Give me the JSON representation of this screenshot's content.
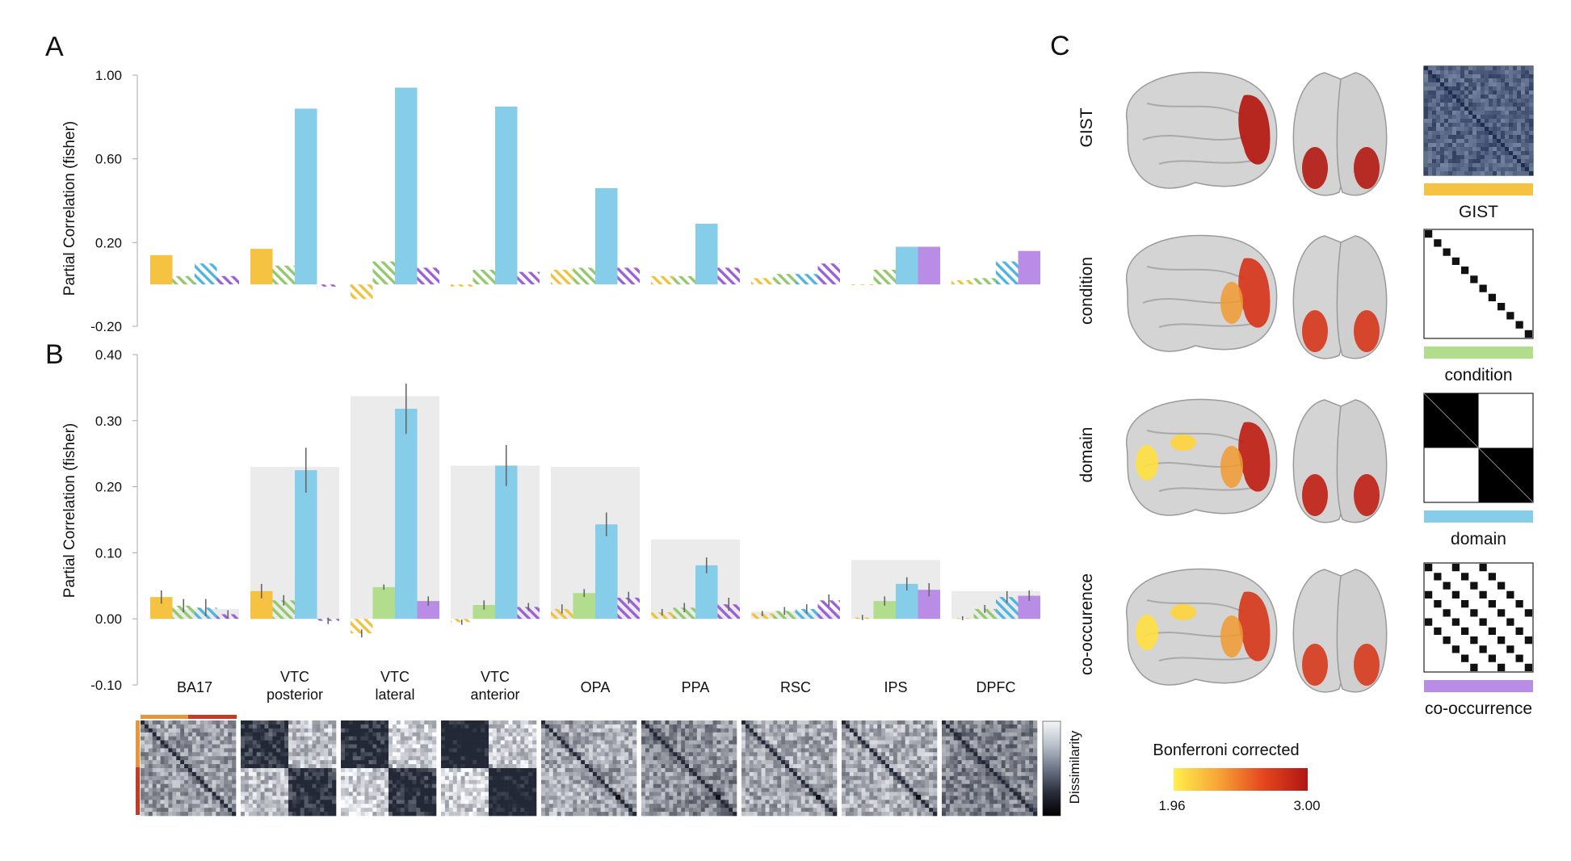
{
  "panel_labels": {
    "a": "A",
    "b": "B",
    "c": "C"
  },
  "colors": {
    "gist": "#f5c242",
    "condition": "#b2dd8d",
    "domain": "#86cdea",
    "cooccurrence": "#b98de6",
    "gist_hatch": "#edc33f",
    "condition_hatch": "#92c96b",
    "domain_hatch": "#4eb4e0",
    "cooccurrence_hatch": "#9b5fd8",
    "ceiling": "#ebebec",
    "errorbar": "#666666"
  },
  "chart_data": [
    {
      "type": "bar",
      "panel": "A",
      "ylabel": "Partial Correlation (fisher)",
      "ylim": [
        -0.2,
        1.0
      ],
      "yticks": [
        "1.00",
        "0.60",
        "0.20",
        "-0.20"
      ],
      "ytick_values": [
        1.0,
        0.6,
        0.2,
        -0.2
      ],
      "categories": [
        "BA17",
        "VTC posterior",
        "VTC lateral",
        "VTC anterior",
        "OPA",
        "PPA",
        "RSC",
        "IPS",
        "DPFC"
      ],
      "series": [
        {
          "key": "gist",
          "values": [
            0.14,
            0.17,
            -0.07,
            -0.01,
            0.07,
            0.04,
            0.03,
            0.0,
            0.02
          ],
          "hatched": [
            false,
            false,
            true,
            true,
            true,
            true,
            true,
            true,
            true
          ]
        },
        {
          "key": "condition",
          "values": [
            0.04,
            0.09,
            0.11,
            0.07,
            0.08,
            0.04,
            0.05,
            0.07,
            0.03
          ],
          "hatched": [
            true,
            true,
            true,
            true,
            true,
            true,
            true,
            true,
            true
          ]
        },
        {
          "key": "domain",
          "values": [
            0.1,
            0.84,
            0.94,
            0.85,
            0.46,
            0.29,
            0.05,
            0.18,
            0.11
          ],
          "hatched": [
            true,
            false,
            false,
            false,
            false,
            false,
            true,
            false,
            true
          ]
        },
        {
          "key": "cooccurrence",
          "values": [
            0.04,
            -0.01,
            0.08,
            0.06,
            0.08,
            0.08,
            0.1,
            0.18,
            0.16
          ],
          "hatched": [
            true,
            true,
            true,
            true,
            true,
            true,
            true,
            false,
            false
          ]
        }
      ]
    },
    {
      "type": "bar",
      "panel": "B",
      "ylabel": "Partial Correlation (fisher)",
      "ylim": [
        -0.1,
        0.4
      ],
      "yticks": [
        "0.40",
        "0.30",
        "0.20",
        "0.10",
        "0.00",
        "-0.10"
      ],
      "ytick_values": [
        0.4,
        0.3,
        0.2,
        0.1,
        0.0,
        -0.1
      ],
      "categories": [
        "BA17",
        "VTC posterior",
        "VTC lateral",
        "VTC anterior",
        "OPA",
        "PPA",
        "RSC",
        "IPS",
        "DPFC"
      ],
      "category_lines": [
        [
          "BA17"
        ],
        [
          "VTC",
          "posterior"
        ],
        [
          "VTC",
          "lateral"
        ],
        [
          "VTC",
          "anterior"
        ],
        [
          "OPA"
        ],
        [
          "PPA"
        ],
        [
          "RSC"
        ],
        [
          "IPS"
        ],
        [
          "DPFC"
        ]
      ],
      "noise_ceiling": [
        0.015,
        0.23,
        0.337,
        0.232,
        0.23,
        0.12,
        0.011,
        0.089,
        0.042
      ],
      "series": [
        {
          "key": "gist",
          "values": [
            0.033,
            0.042,
            -0.022,
            -0.005,
            0.015,
            0.01,
            0.008,
            0.002,
            0.001
          ],
          "errors": [
            0.01,
            0.011,
            0.006,
            0.004,
            0.007,
            0.005,
            0.004,
            0.004,
            0.003
          ],
          "hatched": [
            false,
            false,
            true,
            true,
            true,
            true,
            true,
            true,
            true
          ]
        },
        {
          "key": "condition",
          "values": [
            0.02,
            0.028,
            0.048,
            0.021,
            0.039,
            0.017,
            0.012,
            0.027,
            0.015
          ],
          "errors": [
            0.01,
            0.008,
            0.004,
            0.007,
            0.006,
            0.007,
            0.006,
            0.007,
            0.006
          ],
          "hatched": [
            true,
            true,
            false,
            false,
            false,
            true,
            true,
            false,
            true
          ]
        },
        {
          "key": "domain",
          "values": [
            0.017,
            0.225,
            0.318,
            0.232,
            0.143,
            0.081,
            0.015,
            0.053,
            0.033
          ],
          "errors": [
            0.013,
            0.034,
            0.038,
            0.031,
            0.018,
            0.012,
            0.007,
            0.01,
            0.009
          ],
          "hatched": [
            true,
            false,
            false,
            false,
            false,
            false,
            true,
            false,
            true
          ]
        },
        {
          "key": "cooccurrence",
          "values": [
            0.007,
            -0.003,
            0.027,
            0.018,
            0.032,
            0.022,
            0.028,
            0.044,
            0.035
          ],
          "errors": [
            0.006,
            0.005,
            0.007,
            0.006,
            0.009,
            0.01,
            0.009,
            0.01,
            0.008
          ],
          "hatched": [
            true,
            true,
            false,
            true,
            true,
            true,
            true,
            false,
            false
          ]
        }
      ]
    }
  ],
  "rdm_strip": {
    "label": "Dissimilarity",
    "matrices": [
      "BA17",
      "VTC posterior",
      "VTC lateral",
      "VTC anterior",
      "OPA",
      "PPA",
      "RSC",
      "IPS",
      "DPFC"
    ],
    "colorbar": [
      "#f4f6f7",
      "#b9c1cb",
      "#6e7588",
      "#2a2d3c",
      "#000000"
    ]
  },
  "panel_c": {
    "rows": [
      {
        "key": "gist",
        "row_label": "GIST",
        "model_label": "GIST"
      },
      {
        "key": "condition",
        "row_label": "condition",
        "model_label": "condition"
      },
      {
        "key": "domain",
        "row_label": "domain",
        "model_label": "domain"
      },
      {
        "key": "cooccurrence",
        "row_label": "co-occurence",
        "model_label": "co-occurrence"
      }
    ],
    "brain_images": [
      "lateral-brain",
      "ventral-brain"
    ],
    "colorbar": {
      "title": "Bonferroni corrected",
      "min_label": "1.96",
      "max_label": "3.00",
      "colors": [
        "#ffef4d",
        "#f7a636",
        "#e5461f",
        "#b11612"
      ]
    }
  }
}
